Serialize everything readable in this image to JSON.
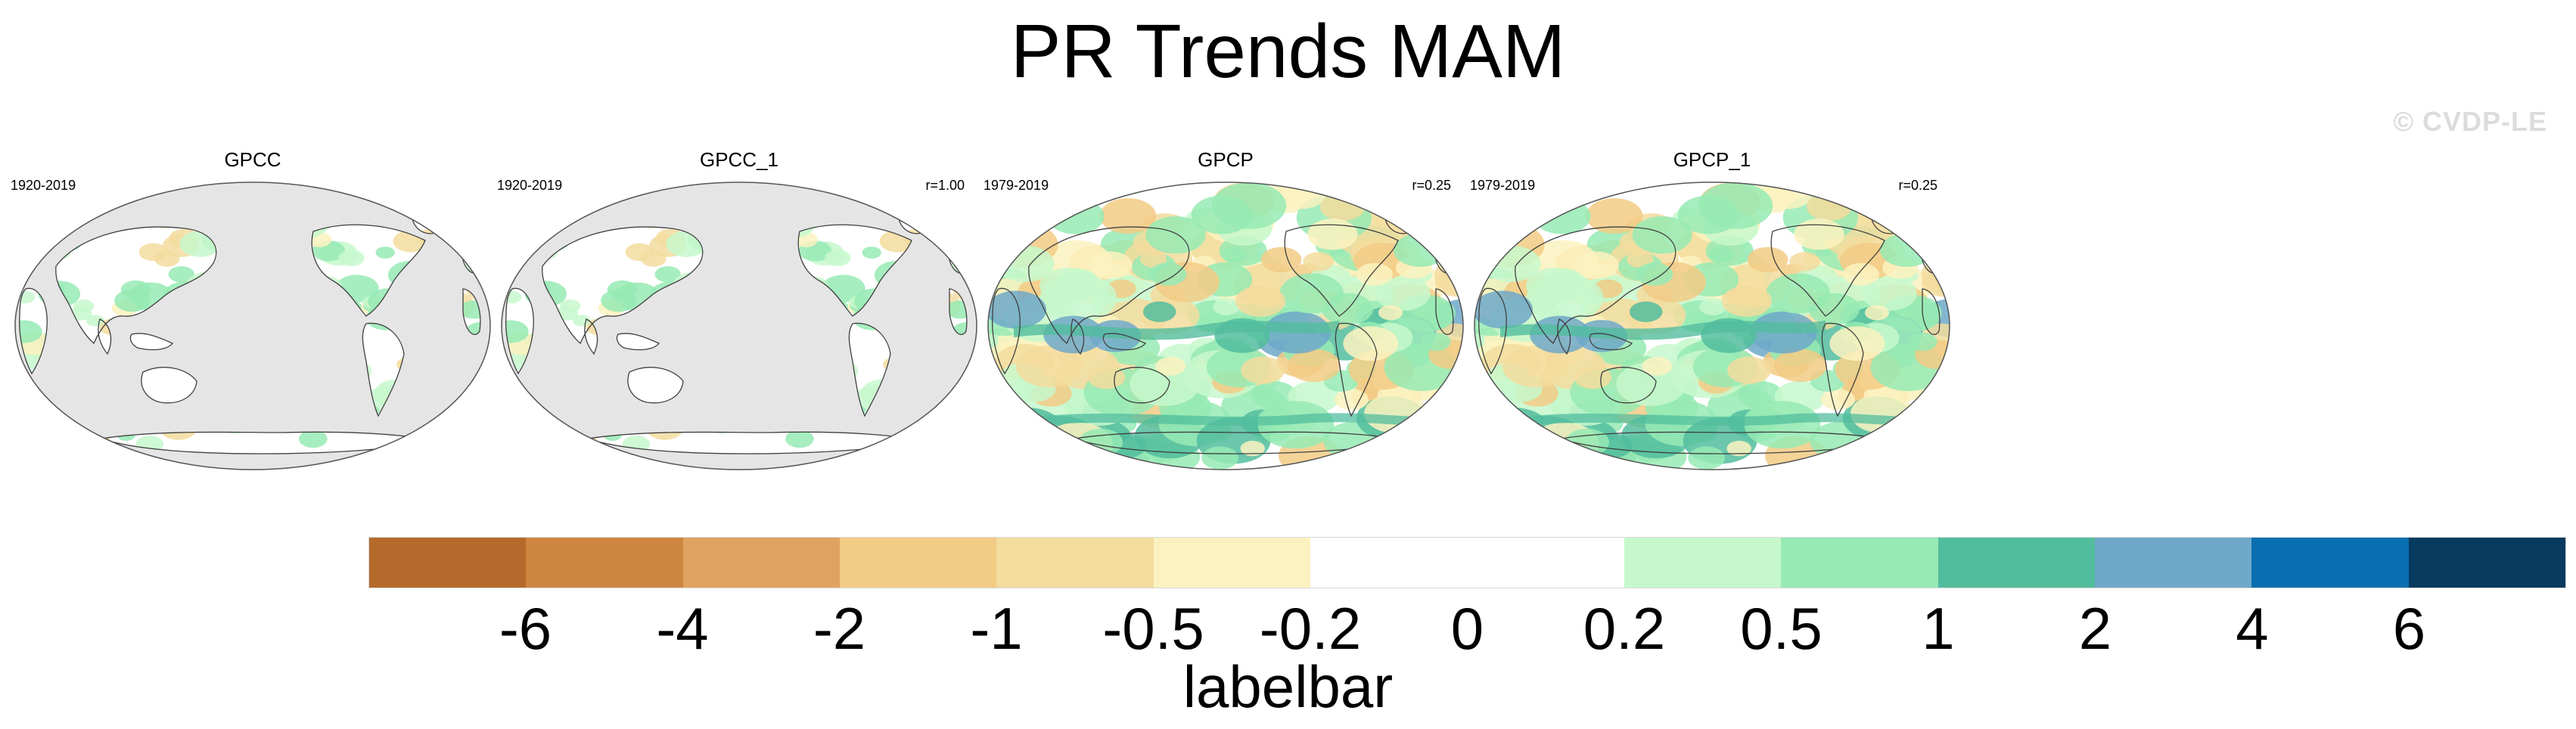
{
  "title": "PR Trends MAM",
  "watermark": "© CVDP-LE",
  "panels": [
    {
      "title": "GPCC",
      "period": "1920-2019",
      "corr": "",
      "coverage": "land"
    },
    {
      "title": "GPCC_1",
      "period": "1920-2019",
      "corr": "r=1.00",
      "coverage": "land"
    },
    {
      "title": "GPCP",
      "period": "1979-2019",
      "corr": "r=0.25",
      "coverage": "global"
    },
    {
      "title": "GPCP_1",
      "period": "1979-2019",
      "corr": "r=0.25",
      "coverage": "global"
    }
  ],
  "colorbar": {
    "colors": [
      "#b56a2c",
      "#cd853f",
      "#dfa261",
      "#f2cb85",
      "#f3dc9d",
      "#fbf2c0",
      "#ffffff",
      "#ffffff",
      "#c7f8cc",
      "#97eab4",
      "#52bd9d",
      "#6fa8c8",
      "#0a6fb0",
      "#063a5e"
    ],
    "tick_labels": [
      "-6",
      "-4",
      "-2",
      "-1",
      "-0.5",
      "-0.2",
      "0",
      "0.2",
      "0.5",
      "1",
      "2",
      "4",
      "6"
    ],
    "label": "labelbar"
  },
  "colors": {
    "land_missing": "#e5e5e5",
    "coastline": "#404040"
  }
}
